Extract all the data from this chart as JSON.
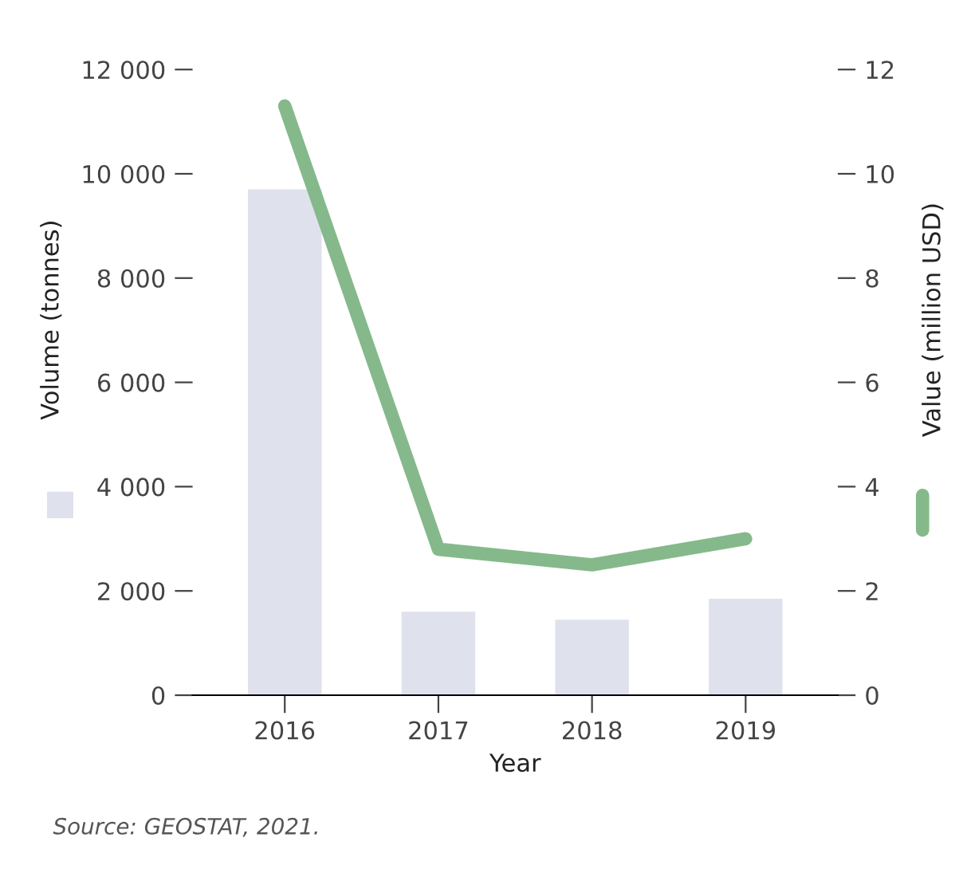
{
  "chart_data": {
    "type": "bar",
    "categories": [
      "2016",
      "2017",
      "2018",
      "2019"
    ],
    "xlabel": "Year",
    "ylabel": "Volume (tonnes)",
    "y2label": "Value (million USD)",
    "series": [
      {
        "color": "#dfe2ec",
        "values": [
          9700,
          1600,
          1450,
          1850
        ]
      },
      {
        "type": "line",
        "axis": "y2",
        "color": "#85b98b",
        "values": [
          11.3,
          2.8,
          2.5,
          3.0
        ]
      }
    ],
    "ylim": [
      0,
      12000
    ],
    "yticks": [
      {
        "value": 0,
        "label": "0"
      },
      {
        "value": 2000,
        "label": "2 000"
      },
      {
        "value": 4000,
        "label": "4 000"
      },
      {
        "value": 6000,
        "label": "6 000"
      },
      {
        "value": 8000,
        "label": "8 000"
      },
      {
        "value": 10000,
        "label": "10 000"
      },
      {
        "value": 12000,
        "label": "12 000"
      }
    ],
    "y2lim": [
      0,
      12
    ],
    "y2ticks": [
      0,
      2,
      4,
      6,
      8,
      10,
      12
    ],
    "annotations": [
      "Source: GEOSTAT, 2021."
    ]
  }
}
